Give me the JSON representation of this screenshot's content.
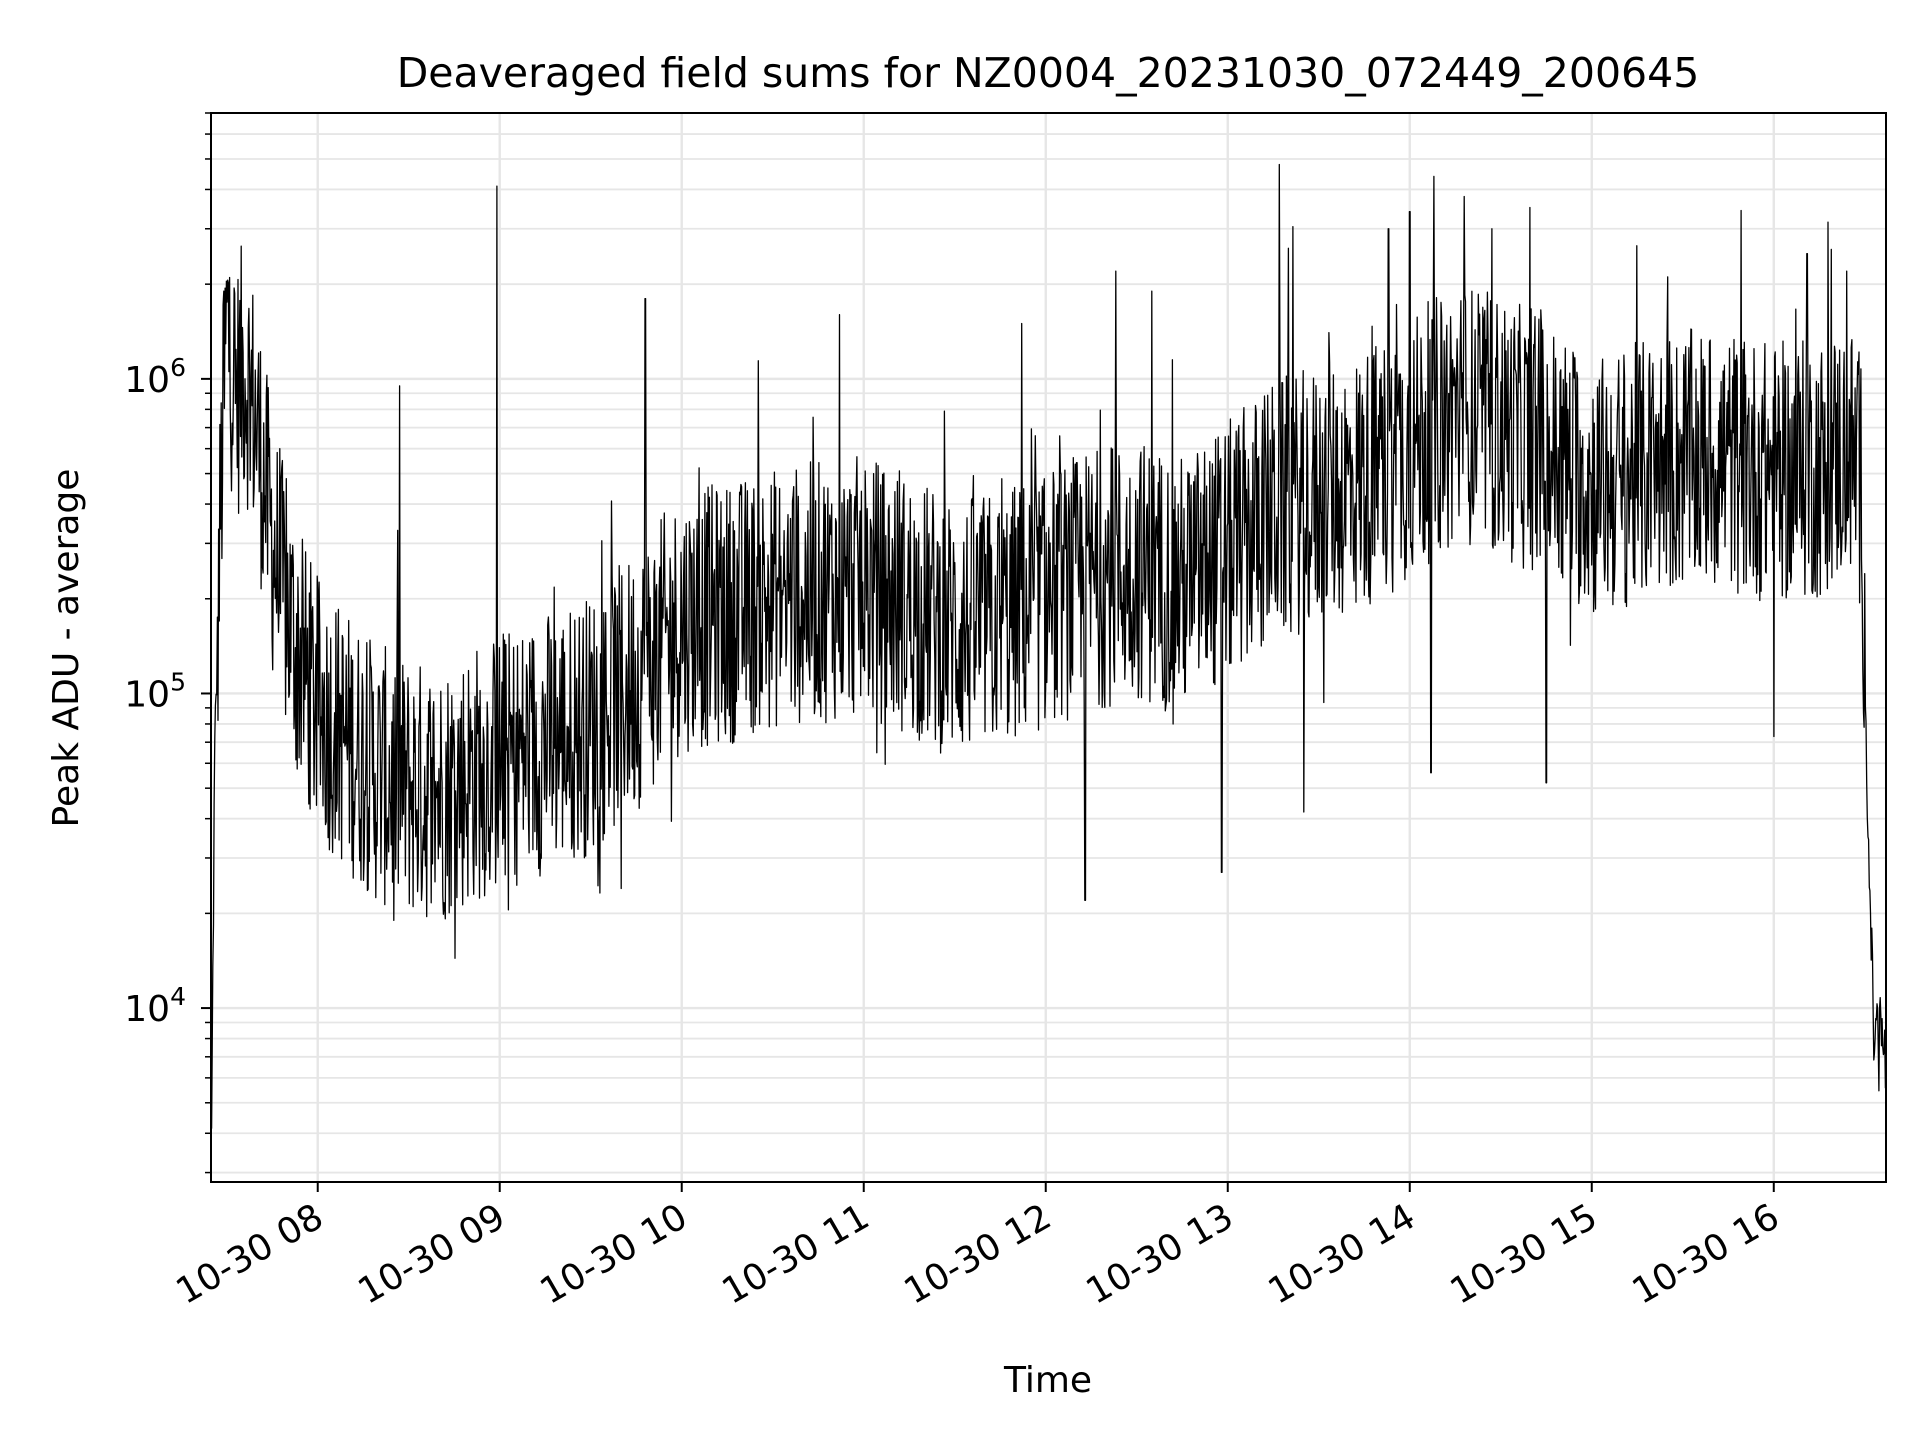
{
  "chart_data": {
    "type": "line",
    "title": "Deaveraged field sums for NZ0004_20231030_072449_200645",
    "xlabel": "Time",
    "ylabel": "Peak ADU - average",
    "x_range": [
      "2023-10-30 07:24:49",
      "2023-10-30 16:37:00"
    ],
    "xtick_labels": [
      "10-30 08",
      "10-30 09",
      "10-30 10",
      "10-30 11",
      "10-30 12",
      "10-30 13",
      "10-30 14",
      "10-30 15",
      "10-30 16"
    ],
    "xtick_hours": [
      8,
      9,
      10,
      11,
      12,
      13,
      14,
      15,
      16
    ],
    "y_scale": "log",
    "ylim": [
      2800,
      7000000
    ],
    "ytick_labels": [
      {
        "base": "10",
        "exp": "4",
        "value": 10000
      },
      {
        "base": "10",
        "exp": "5",
        "value": 100000
      },
      {
        "base": "10",
        "exp": "6",
        "value": 1000000
      }
    ],
    "grid": true,
    "line_color": "#000000",
    "grid_color": "#e6e6e6",
    "series": [
      {
        "points": [
          [
            "07:25",
            3800
          ],
          [
            "07:26",
            60000
          ],
          [
            "07:28",
            400000
          ],
          [
            "07:30",
            1500000
          ],
          [
            "07:33",
            900000
          ],
          [
            "07:36",
            1100000
          ],
          [
            "07:40",
            700000
          ],
          [
            "07:45",
            300000
          ],
          [
            "07:50",
            180000
          ],
          [
            "07:55",
            120000
          ],
          [
            "08:00",
            90000
          ],
          [
            "08:10",
            70000
          ],
          [
            "08:20",
            55000
          ],
          [
            "08:30",
            50000
          ],
          [
            "08:40",
            48000
          ],
          [
            "08:50",
            55000
          ],
          [
            "09:00",
            60000
          ],
          [
            "09:15",
            70000
          ],
          [
            "09:30",
            80000
          ],
          [
            "09:45",
            110000
          ],
          [
            "10:00",
            170000
          ],
          [
            "10:15",
            180000
          ],
          [
            "10:30",
            200000
          ],
          [
            "10:45",
            210000
          ],
          [
            "11:00",
            220000
          ],
          [
            "11:15",
            190000
          ],
          [
            "11:30",
            160000
          ],
          [
            "11:45",
            170000
          ],
          [
            "12:00",
            200000
          ],
          [
            "12:15",
            230000
          ],
          [
            "12:30",
            250000
          ],
          [
            "12:45",
            220000
          ],
          [
            "13:00",
            280000
          ],
          [
            "13:15",
            380000
          ],
          [
            "13:30",
            420000
          ],
          [
            "13:45",
            480000
          ],
          [
            "14:00",
            600000
          ],
          [
            "14:15",
            800000
          ],
          [
            "14:30",
            700000
          ],
          [
            "14:45",
            600000
          ],
          [
            "15:00",
            450000
          ],
          [
            "15:15",
            500000
          ],
          [
            "15:30",
            550000
          ],
          [
            "15:45",
            550000
          ],
          [
            "16:00",
            500000
          ],
          [
            "16:15",
            520000
          ],
          [
            "16:25",
            600000
          ],
          [
            "16:29",
            450000
          ],
          [
            "16:31",
            40000
          ],
          [
            "16:33",
            8000
          ],
          [
            "16:35",
            9000
          ],
          [
            "16:37",
            6500
          ]
        ],
        "spikes": [
          [
            "07:29",
            1900000
          ],
          [
            "07:31",
            2100000
          ],
          [
            "08:27",
            950000
          ],
          [
            "08:59",
            4100000
          ],
          [
            "09:48",
            1800000
          ],
          [
            "10:52",
            1600000
          ],
          [
            "11:52",
            1500000
          ],
          [
            "12:23",
            2200000
          ],
          [
            "12:35",
            1900000
          ],
          [
            "13:17",
            4800000
          ],
          [
            "13:20",
            2600000
          ],
          [
            "13:53",
            3000000
          ],
          [
            "14:00",
            3400000
          ],
          [
            "14:08",
            4400000
          ],
          [
            "14:18",
            3800000
          ],
          [
            "14:27",
            3000000
          ],
          [
            "16:11",
            2500000
          ],
          [
            "16:24",
            2200000
          ]
        ],
        "dips": [
          [
            "08:25",
            19000
          ],
          [
            "09:40",
            24000
          ],
          [
            "12:13",
            22000
          ],
          [
            "12:58",
            27000
          ],
          [
            "13:25",
            42000
          ],
          [
            "14:07",
            56000
          ],
          [
            "14:45",
            52000
          ],
          [
            "16:00",
            73000
          ]
        ]
      }
    ]
  }
}
